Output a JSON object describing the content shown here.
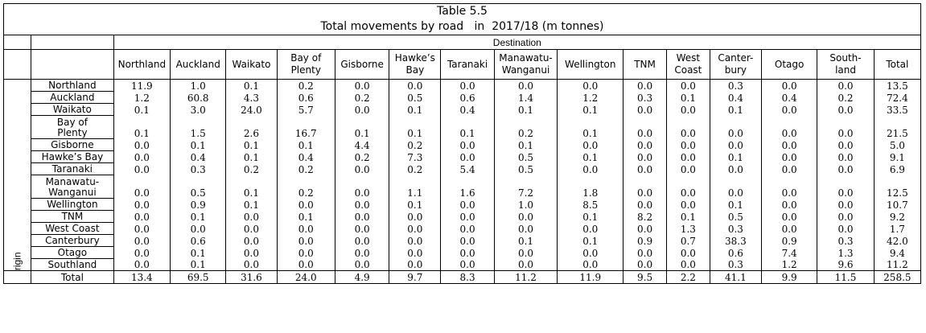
{
  "table": {
    "title_line1": "Table 5.5",
    "title_line2": "Total movements by road   in  2017/18 (m tonnes)",
    "destination_label": "Destination",
    "origin_label": "Origin",
    "columns": [
      "Northland",
      "Auckland",
      "Waikato",
      "Bay of Plenty",
      "Gisborne",
      "Hawke’s Bay",
      "Taranaki",
      "Manawatu-Wanganui",
      "Wellington",
      "TNM",
      "West Coast",
      "Canter-bury",
      "Otago",
      "South-land",
      "Total"
    ],
    "columns_display": [
      [
        "Northland"
      ],
      [
        "Auckland"
      ],
      [
        "Waikato"
      ],
      [
        "Bay of",
        "Plenty"
      ],
      [
        "Gisborne"
      ],
      [
        "Hawke’s",
        "Bay"
      ],
      [
        "Taranaki"
      ],
      [
        "Manawatu-",
        "Wanganui"
      ],
      [
        "Wellington"
      ],
      [
        "TNM"
      ],
      [
        "West",
        "Coast"
      ],
      [
        "Canter-",
        "bury"
      ],
      [
        "Otago"
      ],
      [
        "South-",
        "land"
      ],
      [
        "Total"
      ]
    ],
    "rows": [
      {
        "label": [
          "Northland"
        ],
        "values": [
          "11.9",
          "1.0",
          "0.1",
          "0.2",
          "0.0",
          "0.0",
          "0.0",
          "0.0",
          "0.0",
          "0.0",
          "0.0",
          "0.3",
          "0.0",
          "0.0",
          "13.5"
        ]
      },
      {
        "label": [
          "Auckland"
        ],
        "values": [
          "1.2",
          "60.8",
          "4.3",
          "0.6",
          "0.2",
          "0.5",
          "0.6",
          "1.4",
          "1.2",
          "0.3",
          "0.1",
          "0.4",
          "0.4",
          "0.2",
          "72.4"
        ]
      },
      {
        "label": [
          "Waikato"
        ],
        "values": [
          "0.1",
          "3.0",
          "24.0",
          "5.7",
          "0.0",
          "0.1",
          "0.4",
          "0.1",
          "0.1",
          "0.0",
          "0.0",
          "0.1",
          "0.0",
          "0.0",
          "33.5"
        ]
      },
      {
        "label": [
          "Bay of",
          "Plenty"
        ],
        "values": [
          "0.1",
          "1.5",
          "2.6",
          "16.7",
          "0.1",
          "0.1",
          "0.1",
          "0.2",
          "0.1",
          "0.0",
          "0.0",
          "0.0",
          "0.0",
          "0.0",
          "21.5"
        ]
      },
      {
        "label": [
          "Gisborne"
        ],
        "values": [
          "0.0",
          "0.1",
          "0.1",
          "0.1",
          "4.4",
          "0.2",
          "0.0",
          "0.1",
          "0.0",
          "0.0",
          "0.0",
          "0.0",
          "0.0",
          "0.0",
          "5.0"
        ]
      },
      {
        "label": [
          "Hawke’s Bay"
        ],
        "values": [
          "0.0",
          "0.4",
          "0.1",
          "0.4",
          "0.2",
          "7.3",
          "0.0",
          "0.5",
          "0.1",
          "0.0",
          "0.0",
          "0.1",
          "0.0",
          "0.0",
          "9.1"
        ]
      },
      {
        "label": [
          "Taranaki"
        ],
        "values": [
          "0.0",
          "0.3",
          "0.2",
          "0.2",
          "0.0",
          "0.2",
          "5.4",
          "0.5",
          "0.0",
          "0.0",
          "0.0",
          "0.0",
          "0.0",
          "0.0",
          "6.9"
        ]
      },
      {
        "label": [
          "Manawatu-",
          "Wanganui"
        ],
        "values": [
          "0.0",
          "0.5",
          "0.1",
          "0.2",
          "0.0",
          "1.1",
          "1.6",
          "7.2",
          "1.8",
          "0.0",
          "0.0",
          "0.0",
          "0.0",
          "0.0",
          "12.5"
        ]
      },
      {
        "label": [
          "Wellington"
        ],
        "values": [
          "0.0",
          "0.9",
          "0.1",
          "0.0",
          "0.0",
          "0.1",
          "0.0",
          "1.0",
          "8.5",
          "0.0",
          "0.0",
          "0.1",
          "0.0",
          "0.0",
          "10.7"
        ]
      },
      {
        "label": [
          "TNM"
        ],
        "values": [
          "0.0",
          "0.1",
          "0.0",
          "0.1",
          "0.0",
          "0.0",
          "0.0",
          "0.0",
          "0.1",
          "8.2",
          "0.1",
          "0.5",
          "0.0",
          "0.0",
          "9.2"
        ]
      },
      {
        "label": [
          "West Coast"
        ],
        "values": [
          "0.0",
          "0.0",
          "0.0",
          "0.0",
          "0.0",
          "0.0",
          "0.0",
          "0.0",
          "0.0",
          "0.0",
          "1.3",
          "0.3",
          "0.0",
          "0.0",
          "1.7"
        ]
      },
      {
        "label": [
          "Canterbury"
        ],
        "values": [
          "0.0",
          "0.6",
          "0.0",
          "0.0",
          "0.0",
          "0.0",
          "0.0",
          "0.1",
          "0.1",
          "0.9",
          "0.7",
          "38.3",
          "0.9",
          "0.3",
          "42.0"
        ]
      },
      {
        "label": [
          "Otago"
        ],
        "values": [
          "0.0",
          "0.1",
          "0.0",
          "0.0",
          "0.0",
          "0.0",
          "0.0",
          "0.0",
          "0.0",
          "0.0",
          "0.0",
          "0.6",
          "7.4",
          "1.3",
          "9.4"
        ]
      },
      {
        "label": [
          "Southland"
        ],
        "values": [
          "0.0",
          "0.1",
          "0.0",
          "0.0",
          "0.0",
          "0.0",
          "0.0",
          "0.0",
          "0.0",
          "0.0",
          "0.0",
          "0.3",
          "1.2",
          "9.6",
          "11.2"
        ]
      },
      {
        "label": [
          "Total"
        ],
        "values": [
          "13.4",
          "69.5",
          "31.6",
          "24.0",
          "4.9",
          "9.7",
          "8.3",
          "11.2",
          "11.9",
          "9.5",
          "2.2",
          "41.1",
          "9.9",
          "11.5",
          "258.5"
        ]
      }
    ]
  }
}
